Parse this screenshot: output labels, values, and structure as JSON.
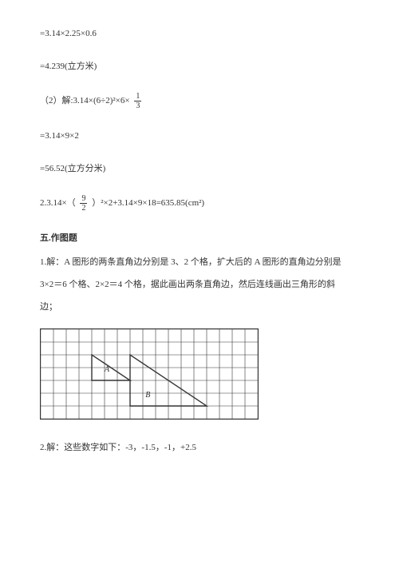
{
  "l1": "=3.14×2.25×0.6",
  "l2": "=4.239(立方米)",
  "l3a": "（2）解:3.14×(6÷2)²×6×",
  "frac1": {
    "num": "1",
    "den": "3"
  },
  "l4": "=3.14×9×2",
  "l5": "=56.52(立方分米)",
  "l6a": "2.3.14×（",
  "frac2": {
    "num": "9",
    "den": "2"
  },
  "l6b": "）²×2+3.14×9×18=635.85(cm²)",
  "section5": "五.作图题",
  "q1_p1": "1.解：A 图形的两条直角边分别是 3、2 个格，扩大后的 A 图形的直角边分别是",
  "q1_p2": "3×2＝6 个格、2×2＝4 个格，据此画出两条直角边，然后连线画出三角形的斜",
  "q1_p3": "边；",
  "grid": {
    "cols": 17,
    "rows": 7,
    "cell": 16,
    "stroke": "#333333",
    "bg": "#ffffff",
    "label_font": "10px SimSun",
    "triA": {
      "points": [
        [
          4,
          4
        ],
        [
          7,
          4
        ],
        [
          4,
          2
        ]
      ],
      "label": "A",
      "lx": 5.0,
      "ly": 3.3
    },
    "triB": {
      "points": [
        [
          7,
          6
        ],
        [
          13,
          6
        ],
        [
          7,
          2
        ]
      ],
      "label": "B",
      "lx": 8.2,
      "ly": 5.3
    }
  },
  "q2": "2.解：这些数字如下：-3，-1.5，-1，+2.5"
}
